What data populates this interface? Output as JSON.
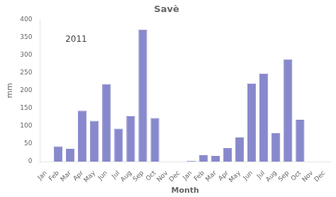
{
  "chart_data": {
    "type": "bar",
    "title": "Savè",
    "xlabel": "Month",
    "ylabel": "mm",
    "categories": [
      "Jan",
      "Feb",
      "Mar",
      "Apr",
      "May",
      "Jun",
      "Jul",
      "Aug",
      "Sep",
      "Oct",
      "Nov",
      "Dec",
      "Jan",
      "Feb",
      "Mar",
      "Apr",
      "May",
      "Jun",
      "Jul",
      "Aug",
      "Sep",
      "Oct",
      "Nov",
      "Dec"
    ],
    "values": [
      0,
      43,
      36,
      143,
      115,
      218,
      93,
      128,
      372,
      123,
      0,
      0,
      2,
      18,
      16,
      38,
      68,
      220,
      248,
      80,
      288,
      118,
      0,
      0
    ],
    "color": "#8888cc",
    "ylim": [
      0,
      400
    ],
    "yticks": [
      0,
      50,
      100,
      150,
      200,
      250,
      300,
      350,
      400
    ],
    "grid": false,
    "annotations": [
      {
        "text": "2011"
      }
    ]
  }
}
